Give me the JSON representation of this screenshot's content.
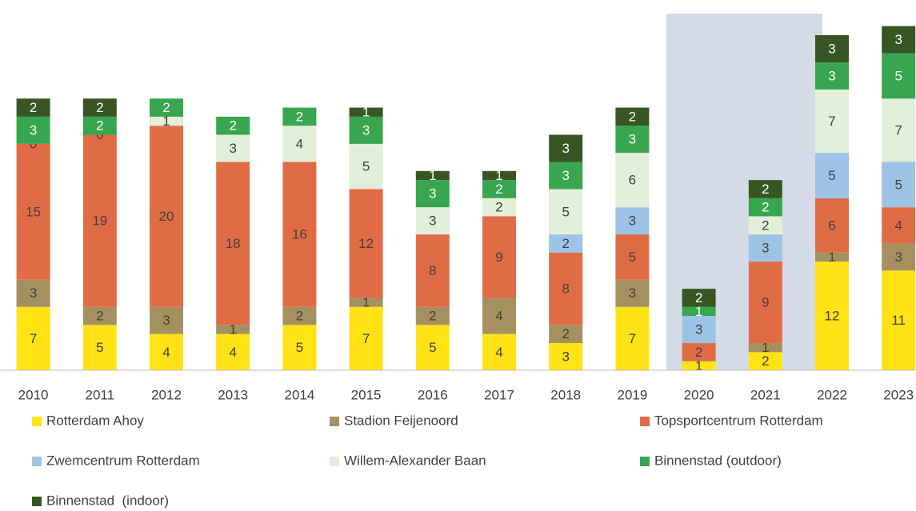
{
  "chart_data": {
    "type": "stacked_bar",
    "categories": [
      "2010",
      "2011",
      "2012",
      "2013",
      "2014",
      "2015",
      "2016",
      "2017",
      "2018",
      "2019",
      "2020",
      "2021",
      "2022",
      "2023"
    ],
    "series": [
      {
        "name": "Rotterdam Ahoy",
        "color": "#ffe314",
        "values": [
          7,
          5,
          4,
          4,
          5,
          7,
          5,
          4,
          3,
          7,
          1,
          2,
          12,
          11
        ]
      },
      {
        "name": "Stadion Feijenoord",
        "color": "#a5915f",
        "values": [
          3,
          2,
          3,
          1,
          2,
          1,
          2,
          4,
          2,
          3,
          null,
          1,
          1,
          3
        ]
      },
      {
        "name": "Topsportcentrum Rotterdam",
        "color": "#e06c45",
        "values": [
          15,
          19,
          20,
          18,
          16,
          12,
          8,
          9,
          8,
          5,
          2,
          9,
          6,
          4
        ]
      },
      {
        "name": "Zwemcentrum Rotterdam",
        "color": "#9dc3e6",
        "values": [
          null,
          null,
          null,
          null,
          null,
          null,
          null,
          null,
          2,
          3,
          3,
          3,
          5,
          5
        ]
      },
      {
        "name": "Willem-Alexander Baan",
        "color": "#e2efd9",
        "values": [
          0,
          0,
          1,
          3,
          4,
          5,
          3,
          2,
          5,
          6,
          null,
          2,
          7,
          7
        ]
      },
      {
        "name": "Binnenstad (outdoor)",
        "color": "#38a64e",
        "values": [
          3,
          2,
          2,
          2,
          2,
          3,
          3,
          2,
          3,
          3,
          1,
          2,
          3,
          5
        ]
      },
      {
        "name": "Binnenstad  (indoor)",
        "color": "#375623",
        "values": [
          2,
          2,
          null,
          null,
          null,
          1,
          1,
          1,
          3,
          2,
          2,
          2,
          3,
          3
        ]
      }
    ],
    "ylim": [
      0,
      40
    ]
  }
}
